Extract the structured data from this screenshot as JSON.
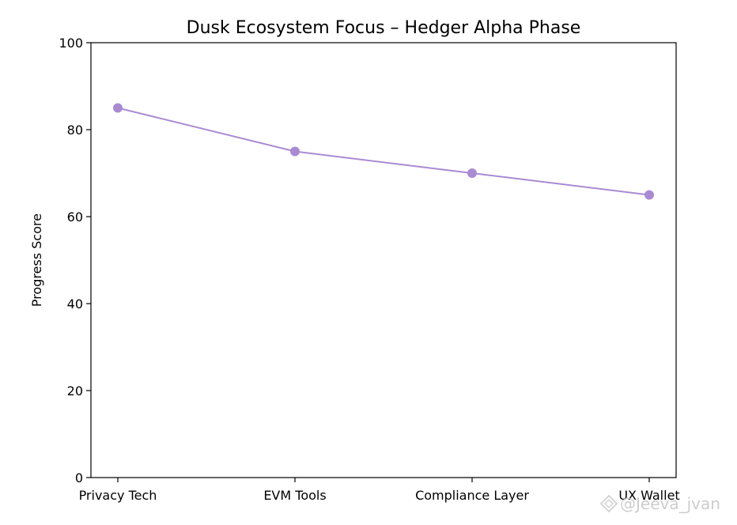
{
  "chart_data": {
    "type": "line",
    "title": "Dusk Ecosystem Focus – Hedger Alpha Phase",
    "xlabel": "",
    "ylabel": "Progress Score",
    "categories": [
      "Privacy Tech",
      "EVM Tools",
      "Compliance Layer",
      "UX Wallet"
    ],
    "series": [
      {
        "values": [
          85,
          75,
          70,
          65
        ],
        "color": "#a98bd3"
      }
    ],
    "ylim": [
      0,
      100
    ],
    "yticks": [
      0,
      20,
      40,
      60,
      80,
      100
    ],
    "grid": false,
    "legend": false
  },
  "watermark": {
    "text": "@Jeeva_jvan",
    "icon": "diamond-logo-icon"
  }
}
